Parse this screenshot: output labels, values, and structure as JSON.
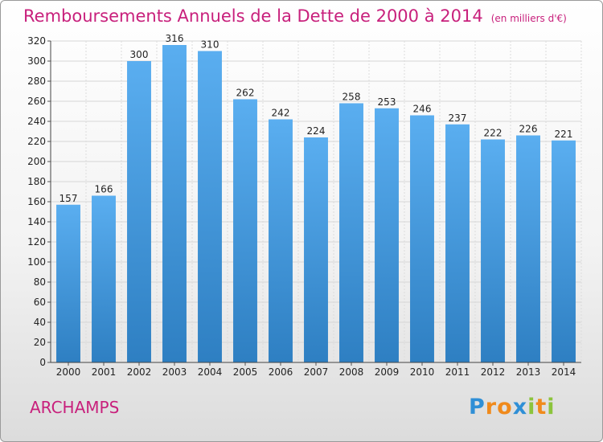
{
  "title": {
    "main": "Remboursements Annuels de la Dette de 2000 à 2014",
    "unit": "(en milliers d'€)"
  },
  "place": "ARCHAMPS",
  "logo": {
    "text": "Proxiti",
    "letters": [
      {
        "ch": "P",
        "color": "#2f8fd6"
      },
      {
        "ch": "r",
        "color": "#f08a1c"
      },
      {
        "ch": "o",
        "color": "#f08a1c"
      },
      {
        "ch": "x",
        "color": "#2f8fd6"
      },
      {
        "ch": "i",
        "color": "#8cc43c"
      },
      {
        "ch": "t",
        "color": "#f08a1c"
      },
      {
        "ch": "i",
        "color": "#8cc43c"
      }
    ]
  },
  "colors": {
    "title": "#c8207c",
    "bar_top": "#5aaef0",
    "bar_bottom": "#2e7fc2"
  },
  "chart_data": {
    "type": "bar",
    "categories": [
      "2000",
      "2001",
      "2002",
      "2003",
      "2004",
      "2005",
      "2006",
      "2007",
      "2008",
      "2009",
      "2010",
      "2011",
      "2012",
      "2013",
      "2014"
    ],
    "values": [
      157,
      166,
      300,
      316,
      310,
      262,
      242,
      224,
      258,
      253,
      246,
      237,
      222,
      226,
      221
    ],
    "title": "Remboursements Annuels de la Dette de 2000 à 2014",
    "xlabel": "",
    "ylabel": "",
    "ylim": [
      0,
      320
    ],
    "yticks": [
      0,
      20,
      40,
      60,
      80,
      100,
      120,
      140,
      160,
      180,
      200,
      220,
      240,
      260,
      280,
      300,
      320
    ],
    "grid": true,
    "legend": "none"
  }
}
